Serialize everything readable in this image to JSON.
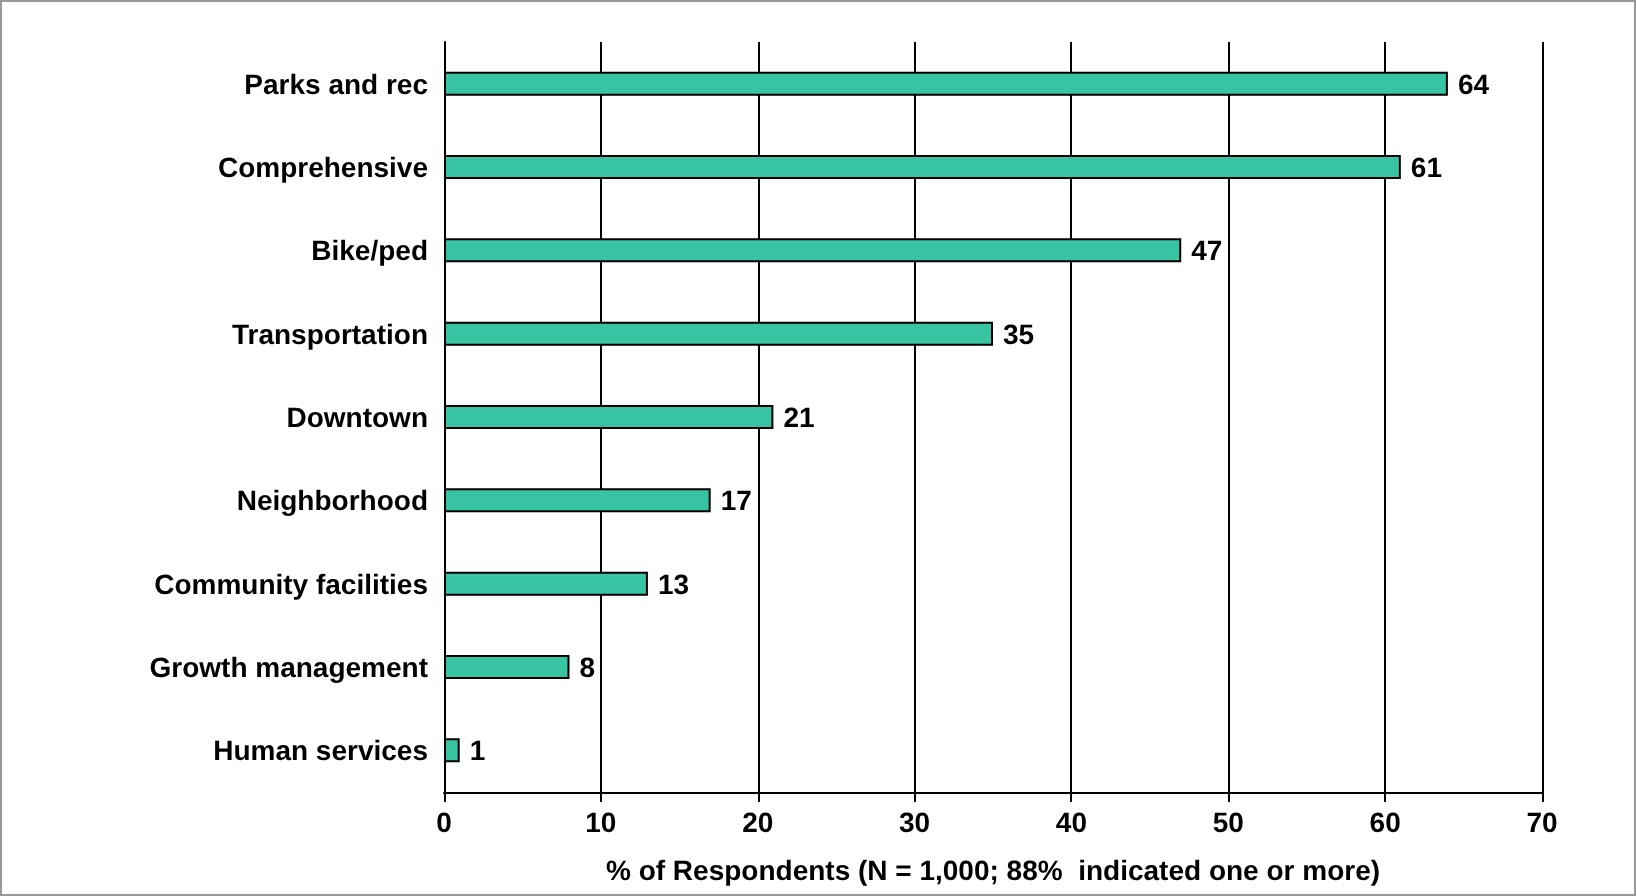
{
  "chart_data": {
    "type": "bar",
    "orientation": "horizontal",
    "xlabel": "% of Respondents (N = 1,000; 88%  indicated one or more)",
    "categories": [
      "Parks and rec",
      "Comprehensive",
      "Bike/ped",
      "Transportation",
      "Downtown",
      "Neighborhood",
      "Community facilities",
      "Growth management",
      "Human services"
    ],
    "values": [
      64,
      61,
      47,
      35,
      21,
      17,
      13,
      8,
      1
    ],
    "color": "#38c4a2",
    "xlim": [
      0,
      70
    ],
    "xticks": [
      0,
      10,
      20,
      30,
      40,
      50,
      60,
      70
    ],
    "grid": "x",
    "data_labels": true
  }
}
